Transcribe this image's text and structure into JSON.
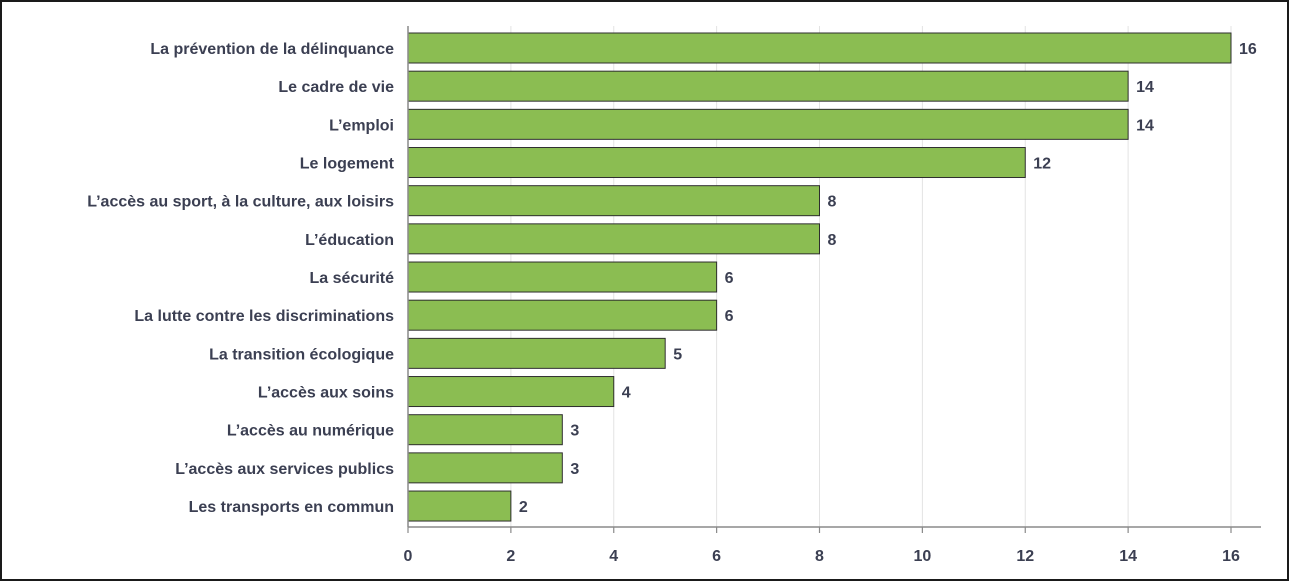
{
  "chart_data": {
    "type": "bar",
    "orientation": "horizontal",
    "categories": [
      "La prévention de la délinquance",
      "Le cadre de vie",
      "L’emploi",
      "Le logement",
      "L’accès au sport, à la culture, aux loisirs",
      "L’éducation",
      "La sécurité",
      "La lutte contre les discriminations",
      "La transition écologique",
      "L’accès aux soins",
      "L’accès au numérique",
      "L’accès aux services publics",
      "Les transports en commun"
    ],
    "values": [
      16,
      14,
      14,
      12,
      8,
      8,
      6,
      6,
      5,
      4,
      3,
      3,
      2
    ],
    "xlim": [
      0,
      16
    ],
    "xticks": [
      0,
      2,
      4,
      6,
      8,
      10,
      12,
      14,
      16
    ],
    "grid": true,
    "data_labels": true,
    "colors": {
      "bar": "#8bbd52",
      "bar_stroke": "#2e2e2e",
      "grid": "#e3e3e3",
      "axis": "#8a8a8a",
      "text": "#3b3f52"
    }
  }
}
